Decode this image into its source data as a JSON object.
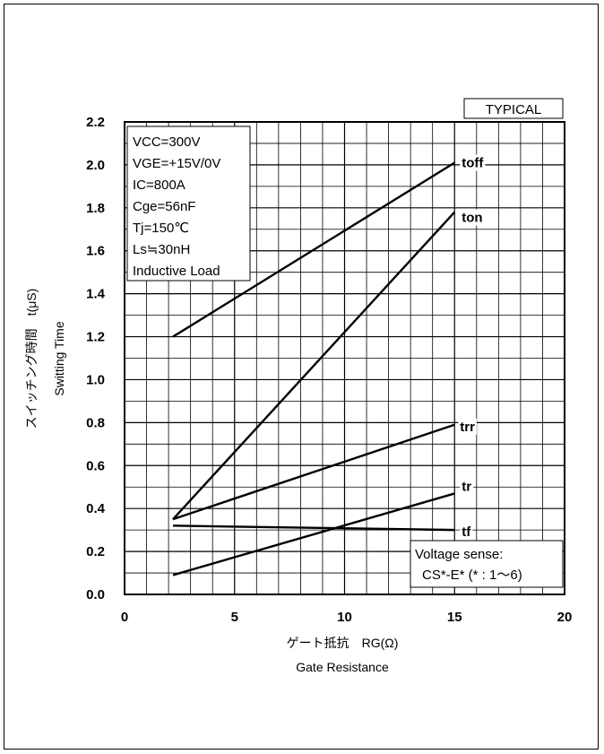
{
  "badge": "TYPICAL",
  "conditions": [
    "VCC=300V",
    "VGE=+15V/0V",
    "IC=800A",
    "Cge=56nF",
    "Tj=150℃",
    "Ls≒30nH",
    "Inductive Load"
  ],
  "note": [
    "Voltage sense:",
    "CS*-E* (* : 1〜6)"
  ],
  "chart_data": {
    "type": "line",
    "xlabel_jp": "ゲート抵抗　RG(Ω)",
    "xlabel": "Gate Resistance",
    "ylabel_jp": "スイッチング時間　t(μS)",
    "ylabel": "Switting Time",
    "xlim": [
      0,
      20
    ],
    "ylim": [
      0,
      2.2
    ],
    "xticks": [
      0,
      5,
      10,
      15,
      20
    ],
    "yticks": [
      0.0,
      0.2,
      0.4,
      0.6,
      0.8,
      1.0,
      1.2,
      1.4,
      1.6,
      1.8,
      2.0,
      2.2
    ],
    "ytick_labels": [
      "0.0",
      "0.2",
      "0.4",
      "0.6",
      "0.8",
      "1.0",
      "1.2",
      "1.4",
      "1.6",
      "1.8",
      "2.0",
      "2.2"
    ],
    "grid": true,
    "series": [
      {
        "name": "toff",
        "x": [
          2.2,
          15
        ],
        "y": [
          1.2,
          2.01
        ]
      },
      {
        "name": "ton",
        "x": [
          2.2,
          15
        ],
        "y": [
          0.35,
          1.78
        ]
      },
      {
        "name": "trr",
        "x": [
          2.2,
          15
        ],
        "y": [
          0.35,
          0.79
        ]
      },
      {
        "name": "tr",
        "x": [
          2.2,
          15
        ],
        "y": [
          0.09,
          0.47
        ]
      },
      {
        "name": "tf",
        "x": [
          2.2,
          15
        ],
        "y": [
          0.32,
          0.3
        ]
      }
    ]
  }
}
